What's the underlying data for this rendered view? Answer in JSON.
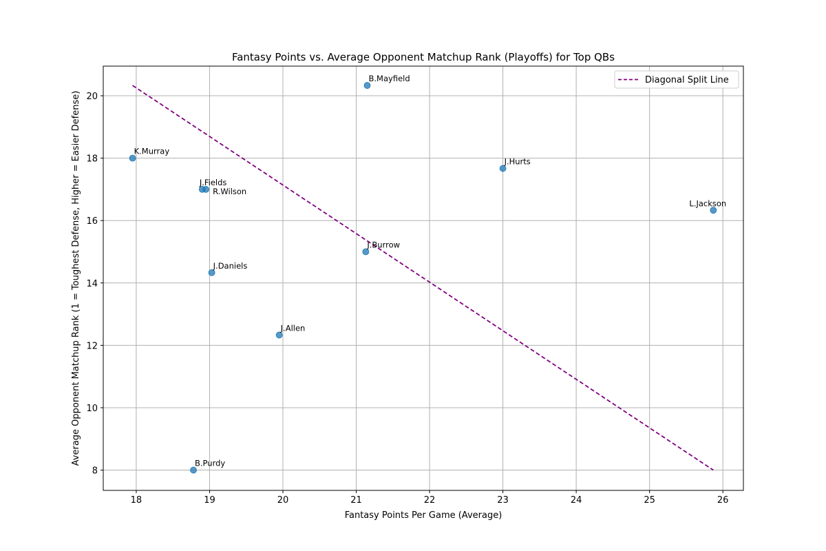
{
  "chart_data": {
    "type": "scatter",
    "title": "Fantasy Points vs. Average Opponent Matchup Rank (Playoffs) for Top QBs",
    "xlabel": "Fantasy Points Per Game (Average)",
    "ylabel": "Average Opponent Matchup Rank (1 = Toughest Defense, Higher = Easier Defense)",
    "xlim": [
      17.55,
      26.28
    ],
    "ylim": [
      7.35,
      20.95
    ],
    "xticks": [
      18,
      19,
      20,
      21,
      22,
      23,
      24,
      25,
      26
    ],
    "yticks": [
      8,
      10,
      12,
      14,
      16,
      18,
      20
    ],
    "grid": true,
    "legend_position": "top-right",
    "point_color": "#1f77b4",
    "points": [
      {
        "label": "K.Murray",
        "x": 17.95,
        "y": 18.0
      },
      {
        "label": "J.Fields",
        "x": 18.9,
        "y": 17.0
      },
      {
        "label": "R.Wilson",
        "x": 18.95,
        "y": 17.0
      },
      {
        "label": "J.Daniels",
        "x": 19.03,
        "y": 14.33
      },
      {
        "label": "B.Purdy",
        "x": 18.78,
        "y": 8.0
      },
      {
        "label": "J.Allen",
        "x": 19.95,
        "y": 12.33
      },
      {
        "label": "J.Burrow",
        "x": 21.13,
        "y": 15.0
      },
      {
        "label": "B.Mayfield",
        "x": 21.15,
        "y": 20.33
      },
      {
        "label": "J.Hurts",
        "x": 23.0,
        "y": 17.67
      },
      {
        "label": "L.Jackson",
        "x": 25.87,
        "y": 16.33
      }
    ],
    "split_line": {
      "name": "Diagonal Split Line",
      "color": "#800080",
      "style": "dashed",
      "x": [
        17.95,
        25.87
      ],
      "y": [
        20.33,
        8.0
      ]
    }
  }
}
